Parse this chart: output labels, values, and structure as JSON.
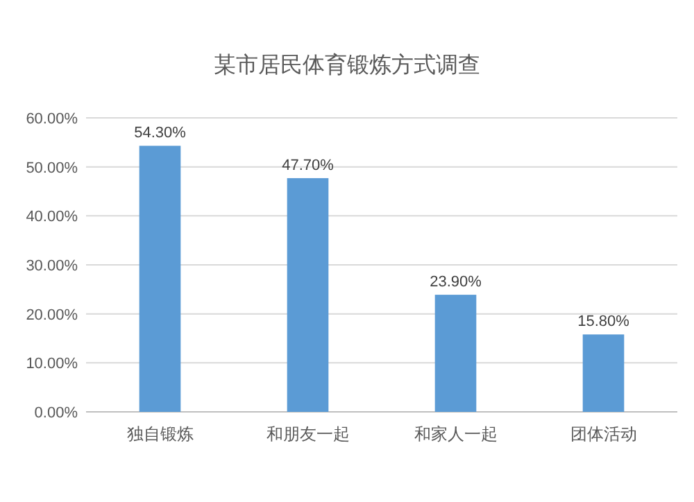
{
  "chart_data": {
    "type": "bar",
    "title": "某市居民体育锻炼方式调查",
    "categories": [
      "独自锻炼",
      "和朋友一起",
      "和家人一起",
      "团体活动"
    ],
    "values": [
      54.3,
      47.7,
      23.9,
      15.8
    ],
    "value_labels": [
      "54.30%",
      "47.70%",
      "23.90%",
      "15.80%"
    ],
    "color": "#5b9bd5",
    "ylim": [
      0,
      60
    ],
    "yticks": [
      {
        "value": 0,
        "label": "0.00%"
      },
      {
        "value": 10,
        "label": "10.00%"
      },
      {
        "value": 20,
        "label": "20.00%"
      },
      {
        "value": 30,
        "label": "30.00%"
      },
      {
        "value": 40,
        "label": "40.00%"
      },
      {
        "value": 50,
        "label": "50.00%"
      },
      {
        "value": 60,
        "label": "60.00%"
      }
    ],
    "grid": "y"
  }
}
